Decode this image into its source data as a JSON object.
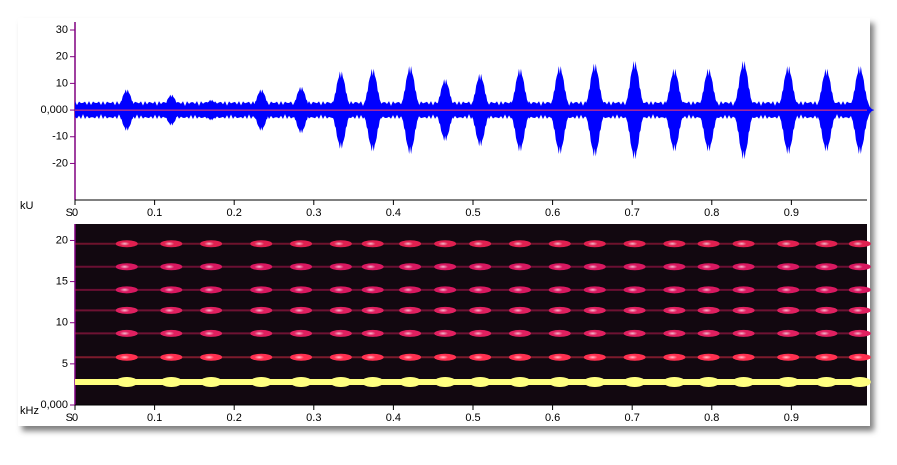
{
  "chart_data": [
    {
      "type": "waveform",
      "y_unit": "kU",
      "x_unit": "S",
      "color": "#0000ff",
      "zero_color": "#ff4060",
      "x": [
        0.065,
        0.121,
        0.171,
        0.234,
        0.284,
        0.334,
        0.374,
        0.421,
        0.465,
        0.509,
        0.559,
        0.609,
        0.653,
        0.703,
        0.753,
        0.796,
        0.84,
        0.896,
        0.944,
        0.986
      ],
      "values": [
        8,
        6,
        4,
        8,
        9,
        15,
        16,
        17,
        12,
        14,
        16,
        17,
        18,
        19,
        16,
        16,
        19,
        17,
        16,
        17
      ],
      "xlim": [
        0,
        0.995
      ],
      "ylim": [
        -33.7,
        33
      ],
      "xticks": [
        0,
        0.1,
        0.2,
        0.3,
        0.4,
        0.5,
        0.6,
        0.7,
        0.8,
        0.9
      ],
      "yticks": [
        30,
        20,
        10,
        {
          "value": 0,
          "label": "0,000"
        },
        -10,
        -20
      ]
    },
    {
      "type": "spectrogram",
      "y_unit": "kHz",
      "x_unit": "S",
      "values": [
        2.8,
        5.8,
        8.7,
        11.5,
        14,
        16.8,
        19.6
      ],
      "colors": [
        "#ffff80",
        "#ff3050",
        "#e02060",
        "#e02060",
        "#d81860",
        "#d81860",
        "#e02050"
      ],
      "xlim": [
        0,
        0.995
      ],
      "ylim": [
        0,
        22
      ],
      "xticks": [
        0,
        0.1,
        0.2,
        0.3,
        0.4,
        0.5,
        0.6,
        0.7,
        0.8,
        0.9
      ],
      "yticks": [
        20,
        15,
        10,
        5,
        {
          "value": 0,
          "label": "0,000"
        }
      ]
    }
  ]
}
